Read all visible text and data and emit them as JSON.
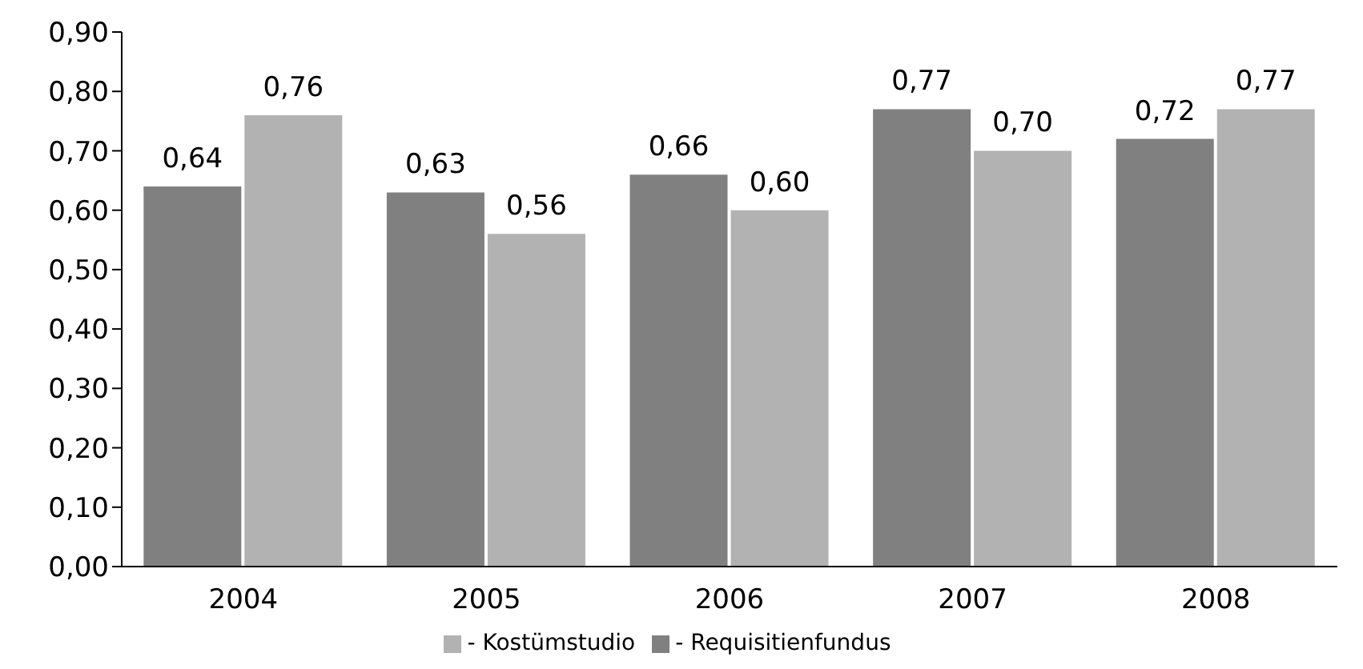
{
  "chart_data": {
    "type": "bar",
    "categories": [
      "2004",
      "2005",
      "2006",
      "2007",
      "2008"
    ],
    "series": [
      {
        "name": "- Requisitienfundus",
        "color": "#808080",
        "values": [
          0.64,
          0.63,
          0.66,
          0.77,
          0.72
        ],
        "value_labels": [
          "0,64",
          "0,63",
          "0,66",
          "0,77",
          "0,72"
        ]
      },
      {
        "name": "- Kostümstudio",
        "color": "#b2b2b2",
        "values": [
          0.76,
          0.56,
          0.6,
          0.7,
          0.77
        ],
        "value_labels": [
          "0,76",
          "0,56",
          "0,60",
          "0,70",
          "0,77"
        ]
      }
    ],
    "ylim": [
      0,
      0.9
    ],
    "yticks": [
      {
        "value": 0,
        "label": "0,00"
      },
      {
        "value": 0.1,
        "label": "0,10"
      },
      {
        "value": 0.2,
        "label": "0,20"
      },
      {
        "value": 0.3,
        "label": "0,30"
      },
      {
        "value": 0.4,
        "label": "0,40"
      },
      {
        "value": 0.5,
        "label": "0,50"
      },
      {
        "value": 0.6,
        "label": "0,60"
      },
      {
        "value": 0.7,
        "label": "0,70"
      },
      {
        "value": 0.8,
        "label": "0,80"
      },
      {
        "value": 0.9,
        "label": "0,90"
      }
    ],
    "grid": false,
    "legend": "bottom"
  }
}
